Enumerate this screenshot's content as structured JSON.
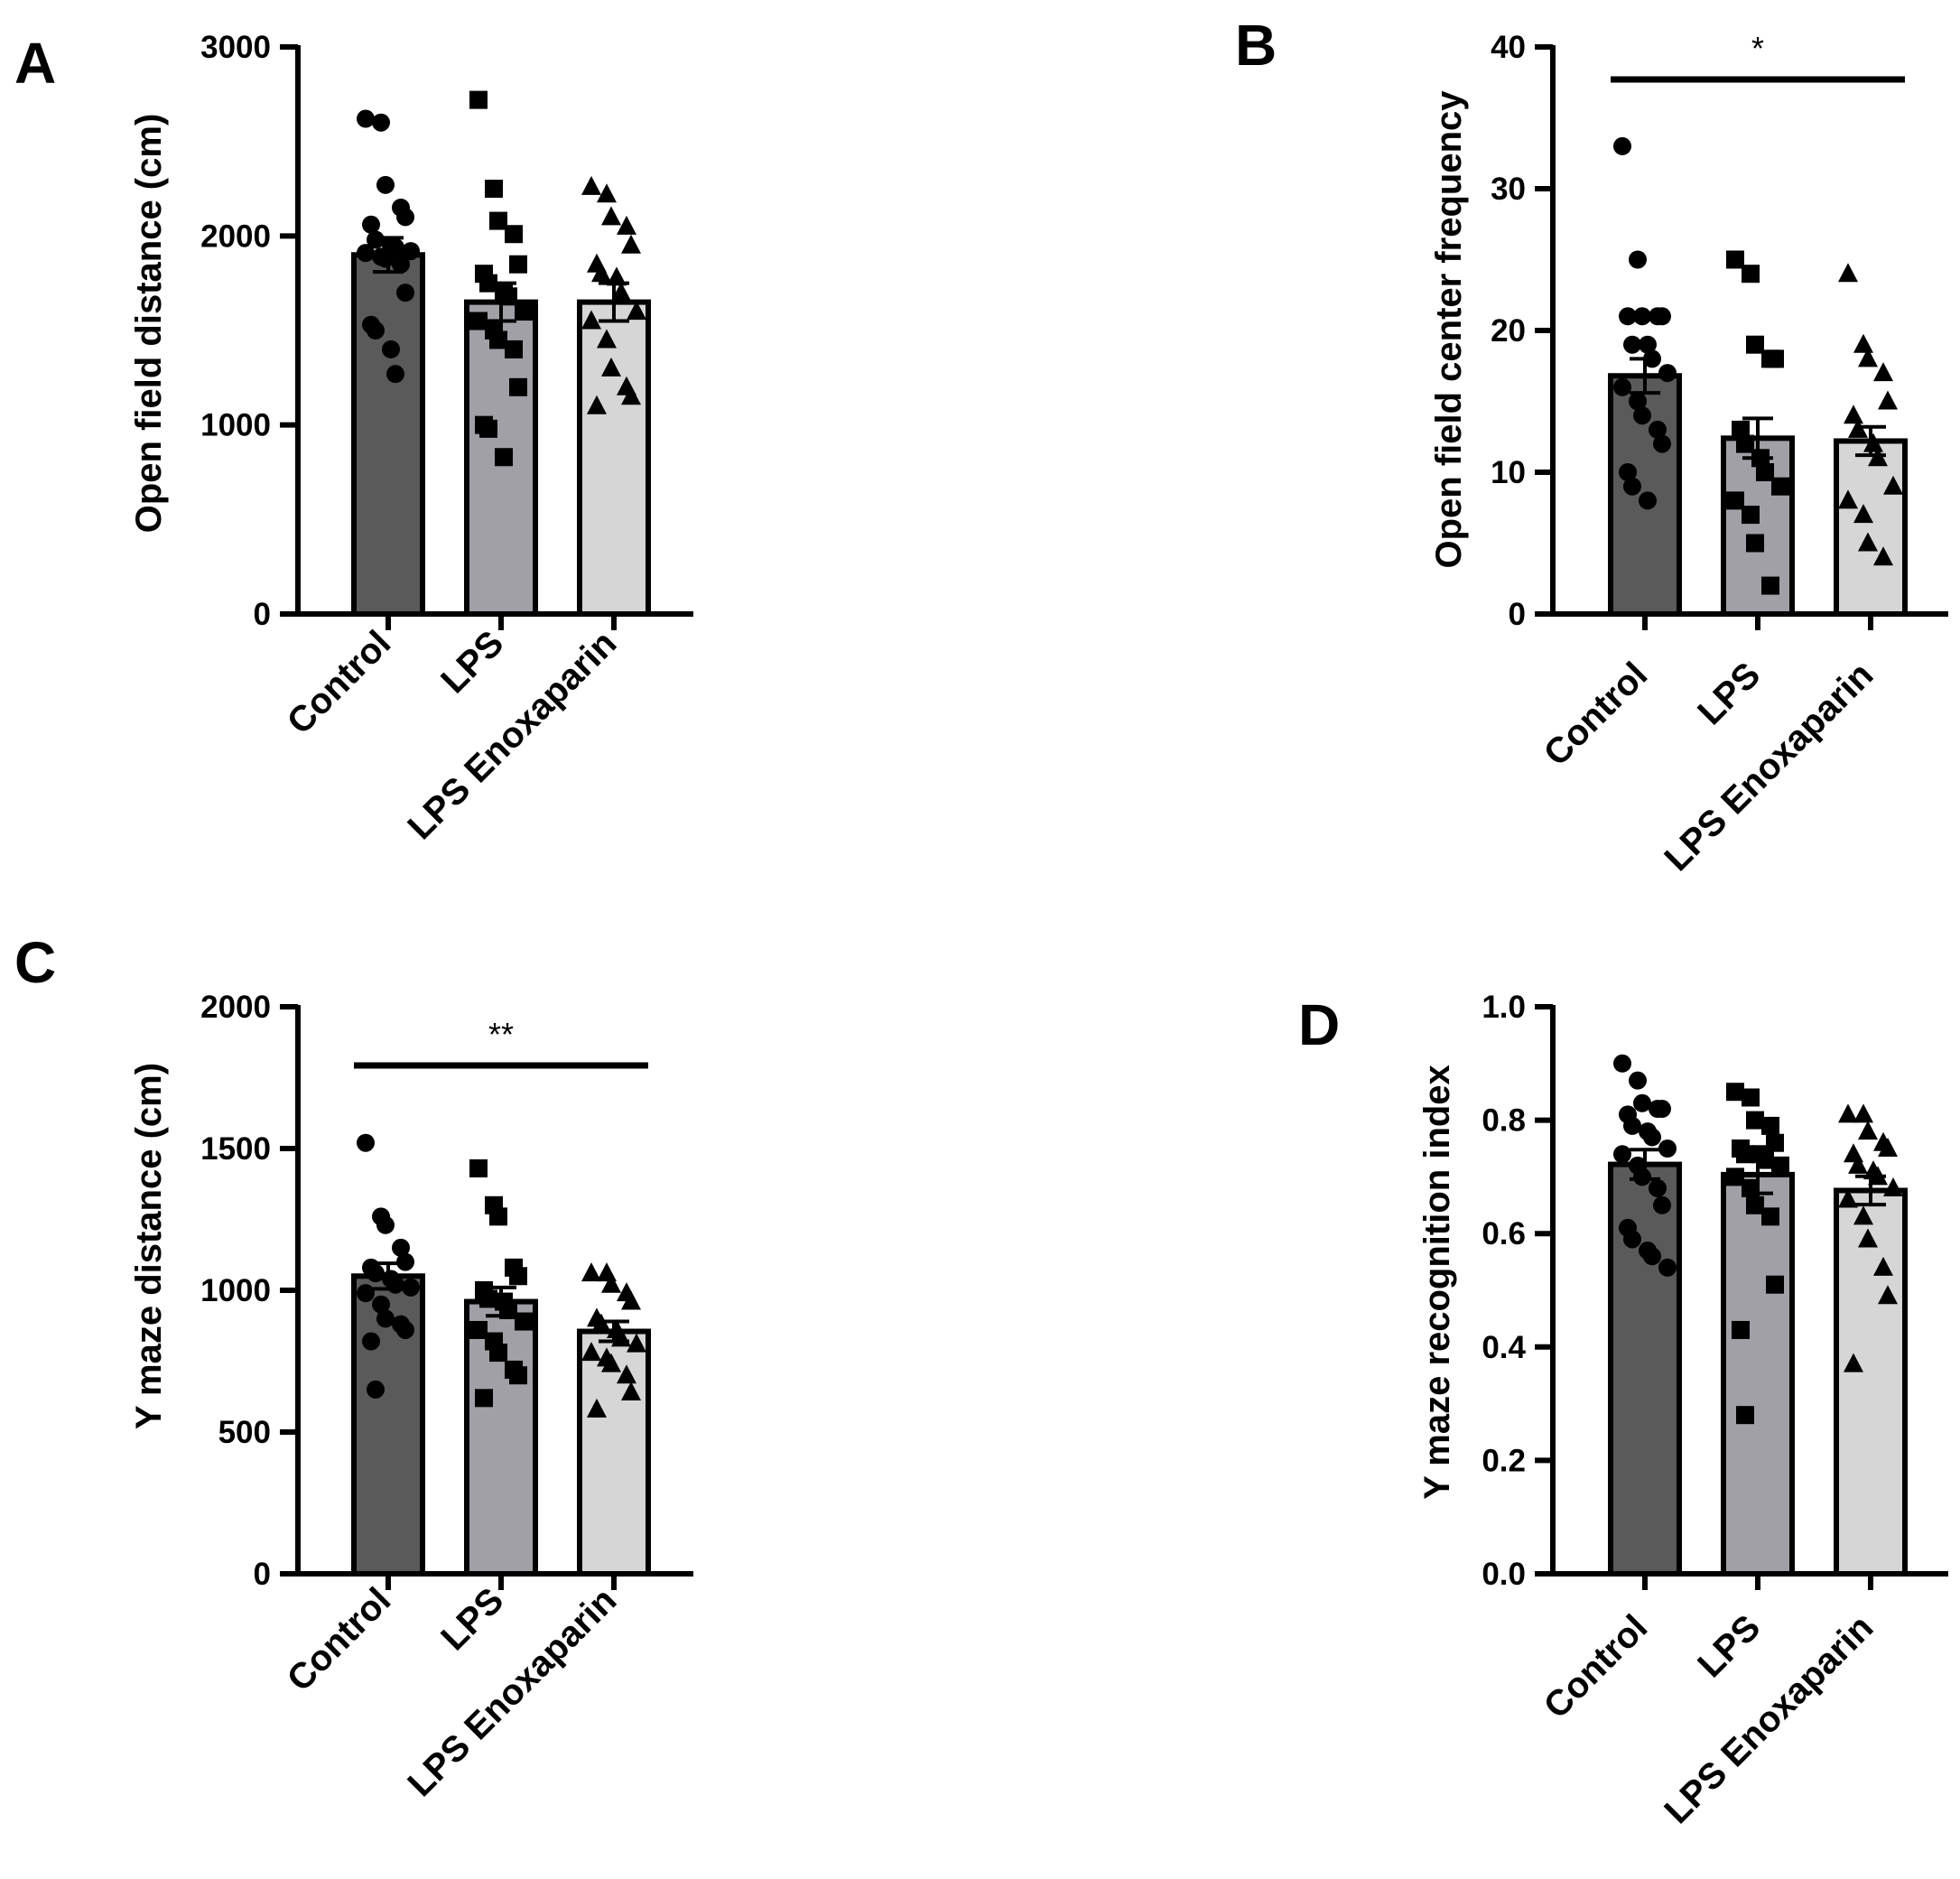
{
  "chart_data": [
    {
      "panel": "A",
      "type": "bar",
      "ylabel": "Open field distance (cm)",
      "ylim": [
        0,
        3000
      ],
      "yticks": [
        0,
        1000,
        2000,
        3000
      ],
      "ytick_labels": [
        "0",
        "1000",
        "2000",
        "3000"
      ],
      "categories": [
        "Control",
        "LPS",
        "LPS Enoxaparin"
      ],
      "means": [
        1900,
        1650,
        1650
      ],
      "sem": [
        90,
        100,
        100
      ],
      "significance": null,
      "points": [
        [
          2620,
          2600,
          2270,
          2150,
          2100,
          2060,
          1980,
          1950,
          1940,
          1920,
          1910,
          1890,
          1880,
          1850,
          1700,
          1530,
          1500,
          1400,
          1270
        ],
        [
          2720,
          2250,
          2080,
          2010,
          1850,
          1800,
          1750,
          1700,
          1680,
          1600,
          1550,
          1500,
          1450,
          1400,
          1200,
          1000,
          980,
          830
        ],
        [
          2260,
          2220,
          2100,
          2050,
          1950,
          1850,
          1800,
          1780,
          1700,
          1600,
          1550,
          1450,
          1300,
          1200,
          1150,
          1100
        ]
      ]
    },
    {
      "panel": "B",
      "type": "bar",
      "ylabel": "Open field center frequency",
      "ylim": [
        0,
        40
      ],
      "yticks": [
        0,
        10,
        20,
        30,
        40
      ],
      "ytick_labels": [
        "0",
        "10",
        "20",
        "30",
        "40"
      ],
      "categories": [
        "Control",
        "LPS",
        "LPS Enoxaparin"
      ],
      "means": [
        16.8,
        12.4,
        12.2
      ],
      "sem": [
        1.2,
        1.4,
        1.0
      ],
      "significance": {
        "label": "*",
        "from": 0,
        "to": 2
      },
      "points": [
        [
          33,
          25,
          21,
          21,
          21,
          21,
          19,
          19,
          18,
          17,
          16,
          15,
          14,
          13,
          12,
          10,
          9,
          8
        ],
        [
          25,
          24,
          19,
          18,
          18,
          13,
          12,
          11,
          10,
          9,
          8,
          7,
          5,
          2
        ],
        [
          24,
          19,
          18,
          17,
          15,
          14,
          13,
          12,
          11,
          9,
          8,
          7,
          5,
          4
        ]
      ]
    },
    {
      "panel": "C",
      "type": "bar",
      "ylabel": "Y maze distance (cm)",
      "ylim": [
        0,
        2000
      ],
      "yticks": [
        0,
        500,
        1000,
        1500,
        2000
      ],
      "ytick_labels": [
        "0",
        "500",
        "1000",
        "1500",
        "2000"
      ],
      "categories": [
        "Control",
        "LPS",
        "LPS Enoxaparin"
      ],
      "means": [
        1050,
        960,
        855
      ],
      "sem": [
        45,
        50,
        35
      ],
      "significance": {
        "label": "**",
        "from": 0,
        "to": 2
      },
      "points": [
        [
          1520,
          1260,
          1230,
          1150,
          1100,
          1080,
          1060,
          1040,
          1020,
          1010,
          990,
          950,
          900,
          880,
          860,
          820,
          650
        ],
        [
          1430,
          1300,
          1260,
          1080,
          1050,
          1000,
          970,
          960,
          930,
          890,
          860,
          820,
          780,
          720,
          700,
          620
        ],
        [
          1060,
          1060,
          1020,
          990,
          960,
          900,
          880,
          860,
          830,
          810,
          780,
          760,
          740,
          700,
          640,
          580
        ]
      ]
    },
    {
      "panel": "D",
      "type": "bar",
      "ylabel": "Y maze recognition index",
      "ylim": [
        0,
        1.0
      ],
      "yticks": [
        0.0,
        0.2,
        0.4,
        0.6,
        0.8,
        1.0
      ],
      "ytick_labels": [
        "0.0",
        "0.2",
        "0.4",
        "0.6",
        "0.8",
        "1.0"
      ],
      "categories": [
        "Control",
        "LPS",
        "LPS Enoxaparin"
      ],
      "means": [
        0.722,
        0.704,
        0.676
      ],
      "sem": [
        0.026,
        0.033,
        0.025
      ],
      "significance": null,
      "points": [
        [
          0.9,
          0.87,
          0.83,
          0.82,
          0.82,
          0.81,
          0.79,
          0.78,
          0.77,
          0.75,
          0.74,
          0.72,
          0.7,
          0.68,
          0.65,
          0.61,
          0.59,
          0.57,
          0.56,
          0.54
        ],
        [
          0.85,
          0.84,
          0.8,
          0.79,
          0.76,
          0.75,
          0.74,
          0.74,
          0.73,
          0.72,
          0.7,
          0.68,
          0.65,
          0.63,
          0.51,
          0.43,
          0.28
        ],
        [
          0.81,
          0.81,
          0.78,
          0.76,
          0.75,
          0.74,
          0.72,
          0.71,
          0.7,
          0.68,
          0.66,
          0.63,
          0.59,
          0.54,
          0.49,
          0.37
        ]
      ]
    }
  ],
  "panels": [
    {
      "letter": "A",
      "ylabel": "Open field distance (cm)",
      "categories": [
        "Control",
        "LPS",
        "LPS Enoxaparin"
      ]
    },
    {
      "letter": "B",
      "ylabel": "Open field center frequency",
      "categories": [
        "Control",
        "LPS",
        "LPS Enoxaparin"
      ]
    },
    {
      "letter": "C",
      "ylabel": "Y maze distance (cm)",
      "categories": [
        "Control",
        "LPS",
        "LPS Enoxaparin"
      ]
    },
    {
      "letter": "D",
      "ylabel": "Y maze recognition index",
      "categories": [
        "Control",
        "LPS",
        "LPS Enoxaparin"
      ]
    }
  ],
  "colors": {
    "bar_fills": [
      "#5a5a5a",
      "#a0a0a6",
      "#d6d6d6"
    ],
    "stroke": "#000000",
    "background": "#ffffff"
  },
  "markers": [
    "circle",
    "square",
    "triangle"
  ]
}
